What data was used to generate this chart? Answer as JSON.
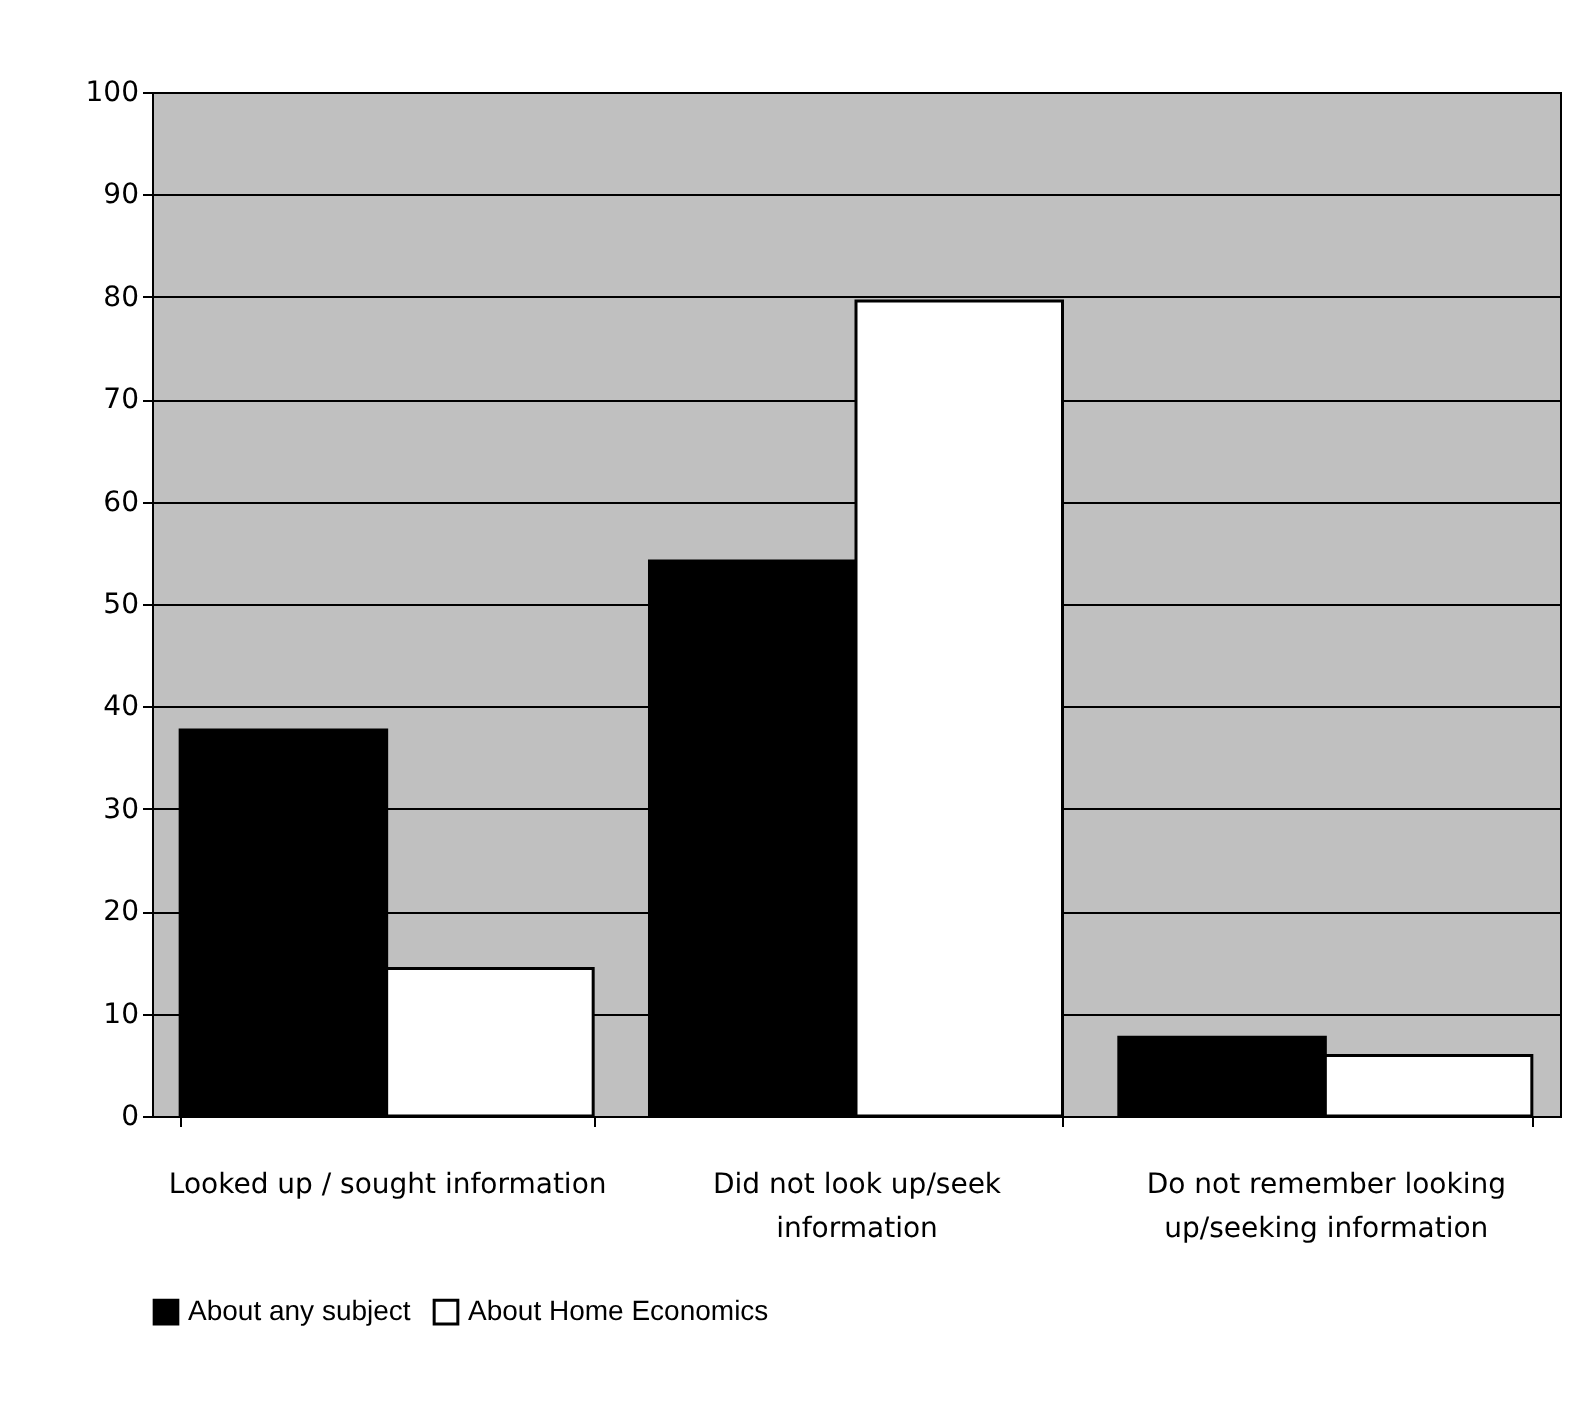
{
  "chart_data": {
    "type": "bar",
    "categories": [
      "Looked up / sought information",
      "Did not look up/seek information",
      "Do not remember looking up/seeking information"
    ],
    "series": [
      {
        "name": "About any subject",
        "color": "#000000",
        "values": [
          37.7,
          54.2,
          7.7
        ]
      },
      {
        "name": "About Home Economics",
        "color": "#ffffff",
        "values": [
          14.4,
          79.6,
          5.9
        ]
      }
    ],
    "ylim": [
      0,
      100
    ],
    "yticks": [
      0,
      10,
      20,
      30,
      40,
      50,
      60,
      70,
      80,
      90,
      100
    ],
    "grid": "y",
    "legend": "bottom"
  }
}
